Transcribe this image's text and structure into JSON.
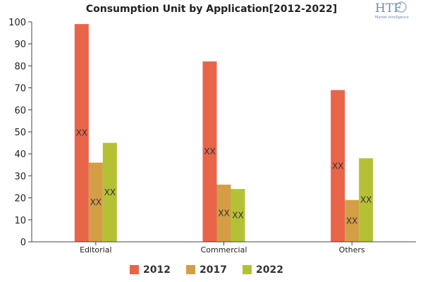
{
  "logo": {
    "text": "HTF",
    "subtext": "Market Intelligence"
  },
  "chart_data": {
    "type": "bar",
    "title": "Consumption Unit by  Application[2012-2022]",
    "categories": [
      "Editorial",
      "Commercial",
      "Others"
    ],
    "series": [
      {
        "name": "2012",
        "values": [
          99,
          82,
          69
        ],
        "color": "#e8654a"
      },
      {
        "name": "2017",
        "values": [
          36,
          26,
          19
        ],
        "color": "#d39e45"
      },
      {
        "name": "2022",
        "values": [
          45,
          24,
          38
        ],
        "color": "#b5c135"
      }
    ],
    "data_labels": "XX",
    "ylim": [
      0,
      100
    ],
    "yticks": [
      0,
      10,
      20,
      30,
      40,
      50,
      60,
      70,
      80,
      90,
      100
    ],
    "grid": false,
    "legend": "bottom"
  }
}
